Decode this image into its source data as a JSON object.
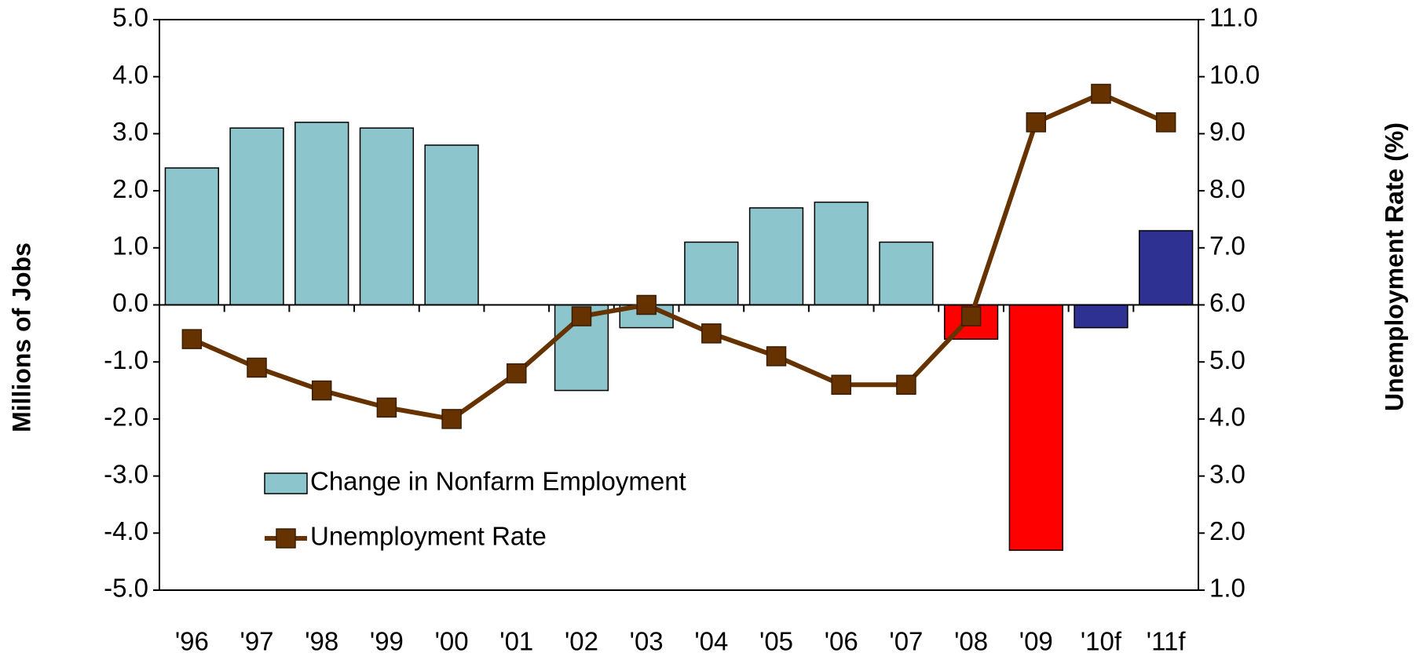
{
  "chart_data": {
    "type": "bar",
    "categories": [
      "'96",
      "'97",
      "'98",
      "'99",
      "'00",
      "'01",
      "'02",
      "'03",
      "'04",
      "'05",
      "'06",
      "'07",
      "'08",
      "'09",
      "'10f",
      "'11f"
    ],
    "ylabel": "Millions of Jobs",
    "y2label": "Unemployment Rate (%)",
    "ylim": [
      -5,
      5
    ],
    "yticks": [
      {
        "value": -5,
        "label": "-5.0"
      },
      {
        "value": -4,
        "label": "-4.0"
      },
      {
        "value": -3,
        "label": "-3.0"
      },
      {
        "value": -2,
        "label": "-2.0"
      },
      {
        "value": -1,
        "label": "-1.0"
      },
      {
        "value": 0,
        "label": "0.0"
      },
      {
        "value": 1,
        "label": "1.0"
      },
      {
        "value": 2,
        "label": "2.0"
      },
      {
        "value": 3,
        "label": "3.0"
      },
      {
        "value": 4,
        "label": "4.0"
      },
      {
        "value": 5,
        "label": "5.0"
      }
    ],
    "y2lim": [
      1,
      11
    ],
    "y2ticks": [
      {
        "value": 1,
        "label": "1.0"
      },
      {
        "value": 2,
        "label": "2.0"
      },
      {
        "value": 3,
        "label": "3.0"
      },
      {
        "value": 4,
        "label": "4.0"
      },
      {
        "value": 5,
        "label": "5.0"
      },
      {
        "value": 6,
        "label": "6.0"
      },
      {
        "value": 7,
        "label": "7.0"
      },
      {
        "value": 8,
        "label": "8.0"
      },
      {
        "value": 9,
        "label": "9.0"
      },
      {
        "value": 10,
        "label": "10.0"
      },
      {
        "value": 11,
        "label": "11.0"
      }
    ],
    "legend": "lower left",
    "series": [
      {
        "name": "Change in Nonfarm Employment",
        "type": "bar",
        "colors": [
          "#8cc5cc",
          "#8cc5cc",
          "#8cc5cc",
          "#8cc5cc",
          "#8cc5cc",
          "#8cc5cc",
          "#8cc5cc",
          "#8cc5cc",
          "#8cc5cc",
          "#8cc5cc",
          "#8cc5cc",
          "#8cc5cc",
          "#ff0000",
          "#ff0000",
          "#2e3192",
          "#2e3192"
        ],
        "values": [
          2.4,
          3.1,
          3.2,
          3.1,
          2.8,
          0,
          -1.5,
          -0.4,
          1.1,
          1.7,
          1.8,
          1.1,
          -0.6,
          -4.3,
          -0.4,
          1.3
        ]
      },
      {
        "name": "Unemployment Rate",
        "type": "line",
        "axis": "y2",
        "color": "#663300",
        "values": [
          5.4,
          4.9,
          4.5,
          4.2,
          4.0,
          4.8,
          5.8,
          6.0,
          5.5,
          5.1,
          4.6,
          4.6,
          5.8,
          9.2,
          9.7,
          9.2
        ]
      }
    ]
  }
}
